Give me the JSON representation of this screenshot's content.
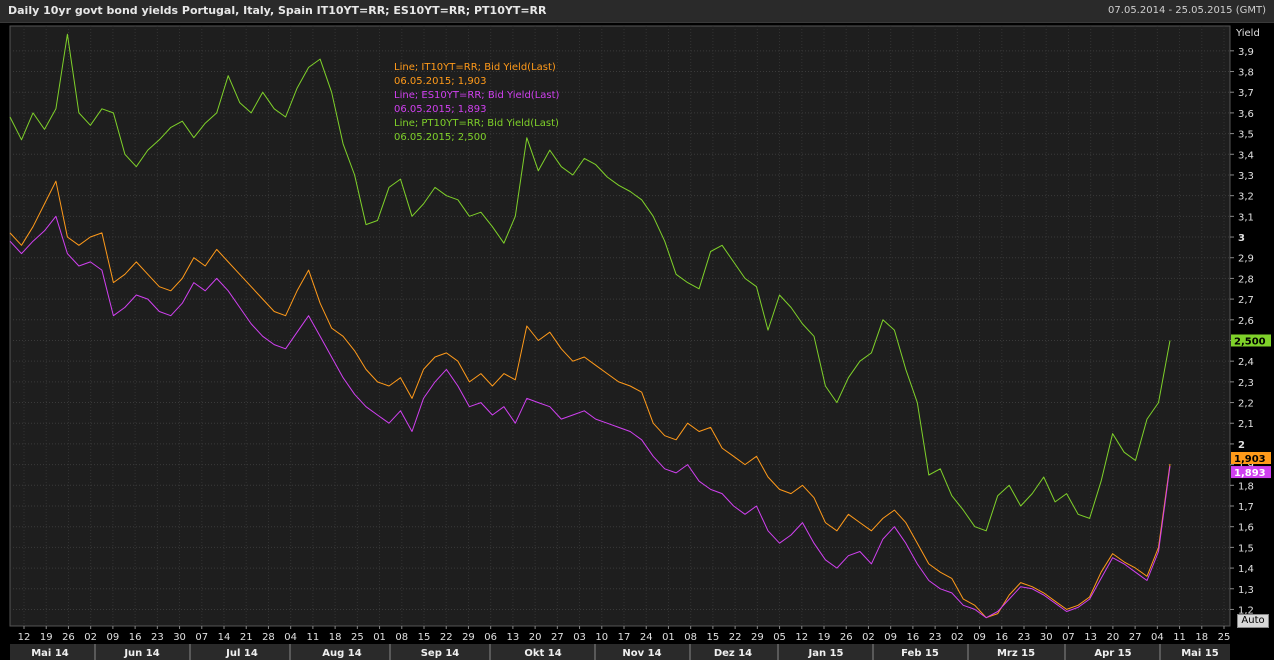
{
  "header": {
    "title": "Daily 10yr govt bond yields Portugal, Italy, Spain IT10YT=RR; ES10YT=RR; PT10YT=RR",
    "date_range": "07.05.2014 - 25.05.2015 (GMT)"
  },
  "controls": {
    "auto_label": "Auto"
  },
  "legend": [
    {
      "line": "Line; IT10YT=RR; Bid Yield(Last)",
      "value": "06.05.2015; 1,903",
      "color": "#ff9a1a"
    },
    {
      "line": "Line; ES10YT=RR; Bid Yield(Last)",
      "value": "06.05.2015; 1,893",
      "color": "#d040f0"
    },
    {
      "line": "Line; PT10YT=RR; Bid Yield(Last)",
      "value": "06.05.2015; 2,500",
      "color": "#7fd12a"
    }
  ],
  "chart_data": {
    "type": "line",
    "ylabel": "Yield",
    "ylim": [
      1.12,
      4.02
    ],
    "grid": true,
    "y_axis_side": "right",
    "y_ticks": [
      "1,2",
      "1,3",
      "1,4",
      "1,5",
      "1,6",
      "1,7",
      "1,8",
      "1,9",
      "2",
      "2,1",
      "2,2",
      "2,3",
      "2,4",
      "2,5",
      "2,6",
      "2,7",
      "2,8",
      "2,9",
      "3",
      "3,1",
      "3,2",
      "3,3",
      "3,4",
      "3,5",
      "3,6",
      "3,7",
      "3,8",
      "3,9"
    ],
    "x_ticks": [
      "12",
      "19",
      "26",
      "02",
      "09",
      "16",
      "23",
      "30",
      "07",
      "14",
      "21",
      "28",
      "04",
      "11",
      "18",
      "25",
      "01",
      "08",
      "15",
      "22",
      "29",
      "06",
      "13",
      "20",
      "27",
      "03",
      "10",
      "17",
      "24",
      "01",
      "08",
      "15",
      "22",
      "29",
      "05",
      "12",
      "19",
      "26",
      "02",
      "09",
      "16",
      "23",
      "02",
      "09",
      "16",
      "23",
      "30",
      "07",
      "13",
      "20",
      "27",
      "04",
      "11",
      "18",
      "25"
    ],
    "months": [
      "Mai 14",
      "Jun 14",
      "Jul 14",
      "Aug 14",
      "Sep 14",
      "Okt 14",
      "Nov 14",
      "Dez 14",
      "Jan 15",
      "Feb 15",
      "Mrz 15",
      "Apr 15",
      "Mai 15"
    ],
    "last_value_labels": [
      {
        "series": "PT10YT=RR",
        "text": "2,500"
      },
      {
        "series": "IT10YT=RR",
        "text": "1,903"
      },
      {
        "series": "ES10YT=RR",
        "text": "1,893"
      }
    ],
    "series": [
      {
        "name": "PT10YT=RR",
        "color": "#7fd12a",
        "values": [
          3.58,
          3.47,
          3.6,
          3.52,
          3.62,
          3.98,
          3.6,
          3.54,
          3.62,
          3.6,
          3.4,
          3.34,
          3.42,
          3.47,
          3.53,
          3.56,
          3.48,
          3.55,
          3.6,
          3.78,
          3.65,
          3.6,
          3.7,
          3.62,
          3.58,
          3.72,
          3.82,
          3.86,
          3.7,
          3.45,
          3.3,
          3.06,
          3.08,
          3.24,
          3.28,
          3.1,
          3.16,
          3.24,
          3.2,
          3.18,
          3.1,
          3.12,
          3.05,
          2.97,
          3.1,
          3.48,
          3.32,
          3.42,
          3.34,
          3.3,
          3.38,
          3.35,
          3.29,
          3.25,
          3.22,
          3.18,
          3.1,
          2.98,
          2.82,
          2.78,
          2.75,
          2.93,
          2.96,
          2.88,
          2.8,
          2.76,
          2.55,
          2.72,
          2.66,
          2.58,
          2.52,
          2.28,
          2.2,
          2.32,
          2.4,
          2.44,
          2.6,
          2.55,
          2.36,
          2.2,
          1.85,
          1.88,
          1.75,
          1.68,
          1.6,
          1.58,
          1.75,
          1.8,
          1.7,
          1.76,
          1.84,
          1.72,
          1.76,
          1.66,
          1.64,
          1.82,
          2.05,
          1.96,
          1.92,
          2.12,
          2.2,
          2.5
        ]
      },
      {
        "name": "IT10YT=RR",
        "color": "#ff9a1a",
        "values": [
          3.02,
          2.96,
          3.05,
          3.16,
          3.27,
          3.0,
          2.96,
          3.0,
          3.02,
          2.78,
          2.82,
          2.88,
          2.82,
          2.76,
          2.74,
          2.8,
          2.9,
          2.86,
          2.94,
          2.88,
          2.82,
          2.76,
          2.7,
          2.64,
          2.62,
          2.74,
          2.84,
          2.68,
          2.56,
          2.52,
          2.45,
          2.36,
          2.3,
          2.28,
          2.32,
          2.22,
          2.36,
          2.42,
          2.44,
          2.4,
          2.3,
          2.34,
          2.28,
          2.34,
          2.31,
          2.57,
          2.5,
          2.54,
          2.46,
          2.4,
          2.42,
          2.38,
          2.34,
          2.3,
          2.28,
          2.25,
          2.1,
          2.04,
          2.02,
          2.1,
          2.06,
          2.08,
          1.98,
          1.94,
          1.9,
          1.94,
          1.84,
          1.78,
          1.76,
          1.8,
          1.74,
          1.62,
          1.58,
          1.66,
          1.62,
          1.58,
          1.64,
          1.68,
          1.62,
          1.52,
          1.42,
          1.38,
          1.35,
          1.25,
          1.22,
          1.16,
          1.18,
          1.27,
          1.33,
          1.31,
          1.28,
          1.24,
          1.2,
          1.22,
          1.26,
          1.38,
          1.47,
          1.43,
          1.4,
          1.36,
          1.5,
          1.903
        ]
      },
      {
        "name": "ES10YT=RR",
        "color": "#d040f0",
        "values": [
          2.98,
          2.92,
          2.98,
          3.03,
          3.1,
          2.92,
          2.86,
          2.88,
          2.84,
          2.62,
          2.66,
          2.72,
          2.7,
          2.64,
          2.62,
          2.68,
          2.78,
          2.74,
          2.8,
          2.74,
          2.66,
          2.58,
          2.52,
          2.48,
          2.46,
          2.54,
          2.62,
          2.52,
          2.42,
          2.32,
          2.24,
          2.18,
          2.14,
          2.1,
          2.16,
          2.06,
          2.22,
          2.3,
          2.36,
          2.28,
          2.18,
          2.2,
          2.14,
          2.18,
          2.1,
          2.22,
          2.2,
          2.18,
          2.12,
          2.14,
          2.16,
          2.12,
          2.1,
          2.08,
          2.06,
          2.02,
          1.94,
          1.88,
          1.86,
          1.9,
          1.82,
          1.78,
          1.76,
          1.7,
          1.66,
          1.7,
          1.58,
          1.52,
          1.56,
          1.62,
          1.52,
          1.44,
          1.4,
          1.46,
          1.48,
          1.42,
          1.54,
          1.6,
          1.52,
          1.42,
          1.34,
          1.3,
          1.28,
          1.22,
          1.2,
          1.16,
          1.19,
          1.25,
          1.31,
          1.3,
          1.27,
          1.23,
          1.19,
          1.21,
          1.25,
          1.35,
          1.45,
          1.42,
          1.38,
          1.34,
          1.48,
          1.893
        ]
      }
    ]
  }
}
